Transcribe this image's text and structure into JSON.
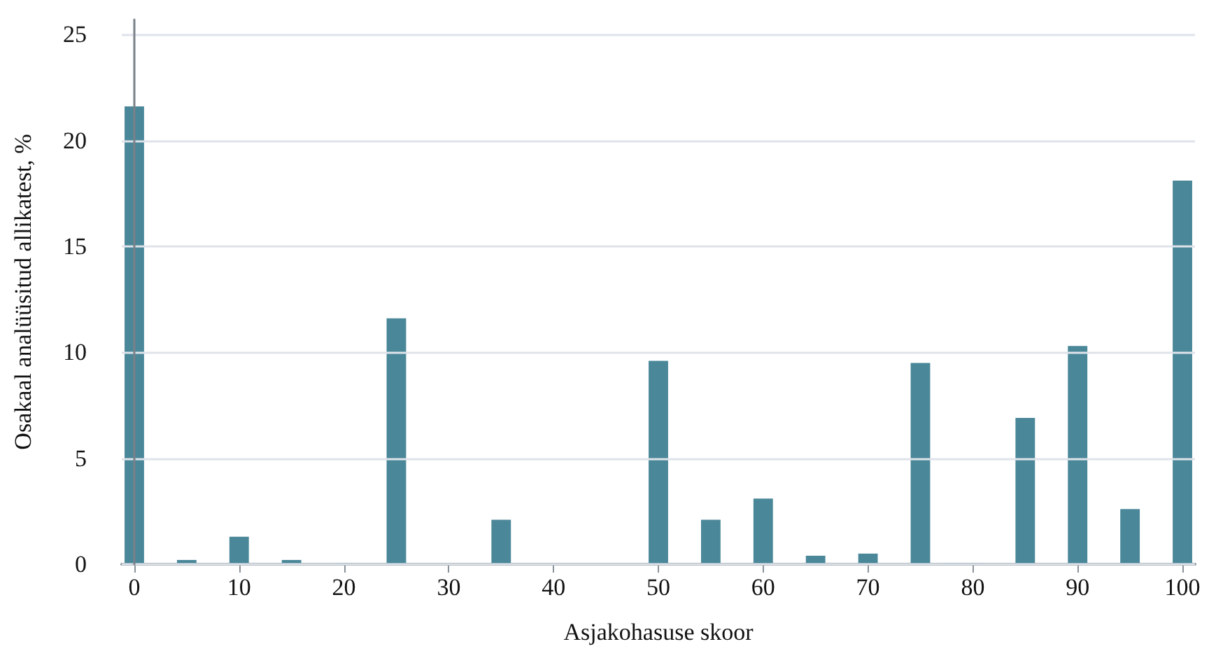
{
  "chart_data": {
    "type": "bar",
    "xlabel": "Asjakohasuse skoor",
    "ylabel": "Osakaal analüüsitud allikatest, %",
    "x": [
      0,
      5,
      10,
      15,
      20,
      25,
      35,
      50,
      55,
      60,
      65,
      70,
      75,
      78,
      80,
      85,
      90,
      95,
      100
    ],
    "values": [
      21.6,
      0.2,
      1.3,
      0.2,
      0.05,
      11.6,
      2.1,
      9.6,
      2.1,
      3.1,
      0.4,
      0.5,
      9.5,
      0.05,
      0.05,
      6.9,
      10.3,
      2.6,
      18.1
    ],
    "color": "#4a8799",
    "xlim": [
      -1.2,
      101.2
    ],
    "xticks": [
      0,
      10,
      20,
      30,
      40,
      50,
      60,
      70,
      80,
      90,
      100
    ],
    "ylim": [
      0,
      25.7
    ],
    "yticks": [
      0,
      5,
      10,
      15,
      20,
      25
    ],
    "grid": "y"
  }
}
